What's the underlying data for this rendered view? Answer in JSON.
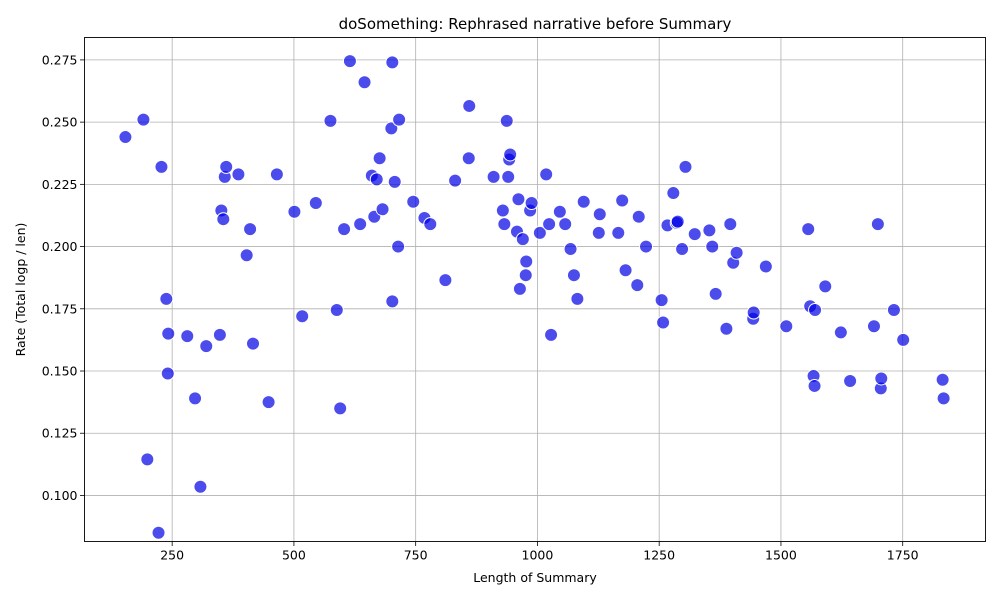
{
  "chart_data": {
    "type": "scatter",
    "title": "doSomething: Rephrased narrative before Summary",
    "xlabel": "Length of Summary",
    "ylabel": "Rate (Total logp / len)",
    "xlim": [
      70,
      1920
    ],
    "ylim": [
      0.0815,
      0.284
    ],
    "xticks": [
      250,
      500,
      750,
      1000,
      1250,
      1500,
      1750
    ],
    "xtick_labels": [
      "250",
      "500",
      "750",
      "1000",
      "1250",
      "1500",
      "1750"
    ],
    "yticks": [
      0.1,
      0.125,
      0.15,
      0.175,
      0.2,
      0.225,
      0.25,
      0.275
    ],
    "ytick_labels": [
      "0.100",
      "0.125",
      "0.150",
      "0.175",
      "0.200",
      "0.225",
      "0.250",
      "0.275"
    ],
    "grid": true,
    "marker_color": "#0000e6",
    "marker_edge_color": "#ffffff",
    "marker_alpha": 0.7,
    "points": [
      [
        154,
        0.244
      ],
      [
        191,
        0.251
      ],
      [
        199,
        0.1145
      ],
      [
        222,
        0.085
      ],
      [
        228,
        0.232
      ],
      [
        238,
        0.179
      ],
      [
        241,
        0.149
      ],
      [
        242,
        0.165
      ],
      [
        281,
        0.164
      ],
      [
        297,
        0.139
      ],
      [
        308,
        0.1035
      ],
      [
        320,
        0.16
      ],
      [
        348,
        0.1645
      ],
      [
        351,
        0.2145
      ],
      [
        355,
        0.211
      ],
      [
        358,
        0.228
      ],
      [
        361,
        0.232
      ],
      [
        386,
        0.229
      ],
      [
        403,
        0.1965
      ],
      [
        410,
        0.207
      ],
      [
        416,
        0.161
      ],
      [
        448,
        0.1375
      ],
      [
        465,
        0.229
      ],
      [
        501,
        0.214
      ],
      [
        517,
        0.172
      ],
      [
        545,
        0.2175
      ],
      [
        575,
        0.2505
      ],
      [
        588,
        0.1745
      ],
      [
        595,
        0.135
      ],
      [
        603,
        0.207
      ],
      [
        615,
        0.2745
      ],
      [
        636,
        0.209
      ],
      [
        645,
        0.266
      ],
      [
        660,
        0.2285
      ],
      [
        665,
        0.212
      ],
      [
        670,
        0.227
      ],
      [
        676,
        0.2355
      ],
      [
        682,
        0.215
      ],
      [
        700,
        0.2475
      ],
      [
        702,
        0.274
      ],
      [
        702,
        0.178
      ],
      [
        707,
        0.226
      ],
      [
        714,
        0.2
      ],
      [
        716,
        0.251
      ],
      [
        745,
        0.218
      ],
      [
        768,
        0.2115
      ],
      [
        780,
        0.209
      ],
      [
        811,
        0.1865
      ],
      [
        831,
        0.2265
      ],
      [
        859,
        0.2355
      ],
      [
        860,
        0.2565
      ],
      [
        910,
        0.228
      ],
      [
        929,
        0.2145
      ],
      [
        932,
        0.209
      ],
      [
        937,
        0.2505
      ],
      [
        940,
        0.228
      ],
      [
        942,
        0.235
      ],
      [
        944,
        0.237
      ],
      [
        958,
        0.206
      ],
      [
        961,
        0.219
      ],
      [
        964,
        0.183
      ],
      [
        970,
        0.203
      ],
      [
        976,
        0.1885
      ],
      [
        977,
        0.194
      ],
      [
        985,
        0.2145
      ],
      [
        988,
        0.2175
      ],
      [
        1005,
        0.2055
      ],
      [
        1018,
        0.229
      ],
      [
        1024,
        0.209
      ],
      [
        1028,
        0.1645
      ],
      [
        1046,
        0.214
      ],
      [
        1057,
        0.209
      ],
      [
        1068,
        0.199
      ],
      [
        1075,
        0.1885
      ],
      [
        1082,
        0.179
      ],
      [
        1095,
        0.218
      ],
      [
        1126,
        0.2055
      ],
      [
        1128,
        0.213
      ],
      [
        1166,
        0.2055
      ],
      [
        1174,
        0.2185
      ],
      [
        1181,
        0.1905
      ],
      [
        1205,
        0.1845
      ],
      [
        1208,
        0.212
      ],
      [
        1223,
        0.2
      ],
      [
        1255,
        0.1785
      ],
      [
        1258,
        0.1695
      ],
      [
        1267,
        0.2085
      ],
      [
        1279,
        0.2215
      ],
      [
        1286,
        0.2095
      ],
      [
        1288,
        0.21
      ],
      [
        1297,
        0.199
      ],
      [
        1304,
        0.232
      ],
      [
        1323,
        0.205
      ],
      [
        1353,
        0.2065
      ],
      [
        1359,
        0.2
      ],
      [
        1366,
        0.181
      ],
      [
        1388,
        0.167
      ],
      [
        1396,
        0.209
      ],
      [
        1402,
        0.1935
      ],
      [
        1409,
        0.1975
      ],
      [
        1443,
        0.171
      ],
      [
        1444,
        0.1735
      ],
      [
        1469,
        0.192
      ],
      [
        1511,
        0.168
      ],
      [
        1556,
        0.207
      ],
      [
        1560,
        0.176
      ],
      [
        1567,
        0.148
      ],
      [
        1569,
        0.144
      ],
      [
        1570,
        0.1745
      ],
      [
        1591,
        0.184
      ],
      [
        1623,
        0.1655
      ],
      [
        1642,
        0.146
      ],
      [
        1691,
        0.168
      ],
      [
        1699,
        0.209
      ],
      [
        1705,
        0.143
      ],
      [
        1706,
        0.147
      ],
      [
        1732,
        0.1745
      ],
      [
        1751,
        0.1625
      ],
      [
        1832,
        0.1465
      ],
      [
        1834,
        0.139
      ]
    ]
  }
}
